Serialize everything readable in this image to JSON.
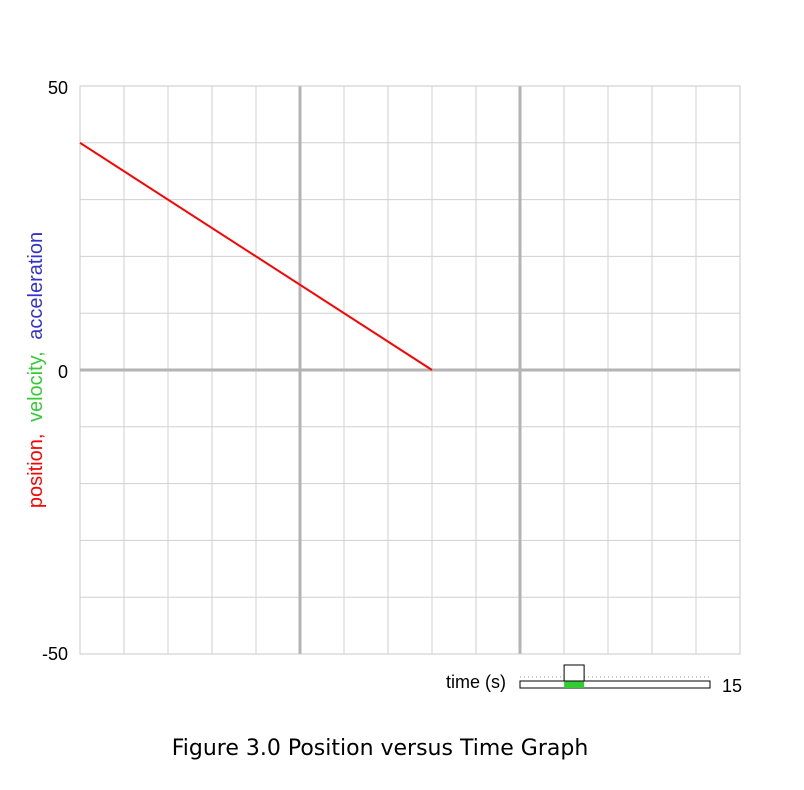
{
  "chart_data": {
    "type": "line",
    "title": "",
    "xlabel": "time (s)",
    "ylabel_parts": [
      {
        "text": "position,",
        "color": "#ff0000"
      },
      {
        "text": "velocity,",
        "color": "#33cc33"
      },
      {
        "text": "acceleration",
        "color": "#3333cc"
      }
    ],
    "xlim": [
      0,
      15
    ],
    "ylim": [
      -50,
      50
    ],
    "y_ticks": [
      "50",
      "0",
      "-50"
    ],
    "x_max_label": "15",
    "grid": true,
    "series": [
      {
        "color": "#ff0000",
        "x": [
          0,
          8
        ],
        "y": [
          40,
          0
        ]
      }
    ]
  },
  "time_slider": {
    "position_fraction": 0.19
  },
  "caption": "Figure 3.0 Position versus Time Graph"
}
